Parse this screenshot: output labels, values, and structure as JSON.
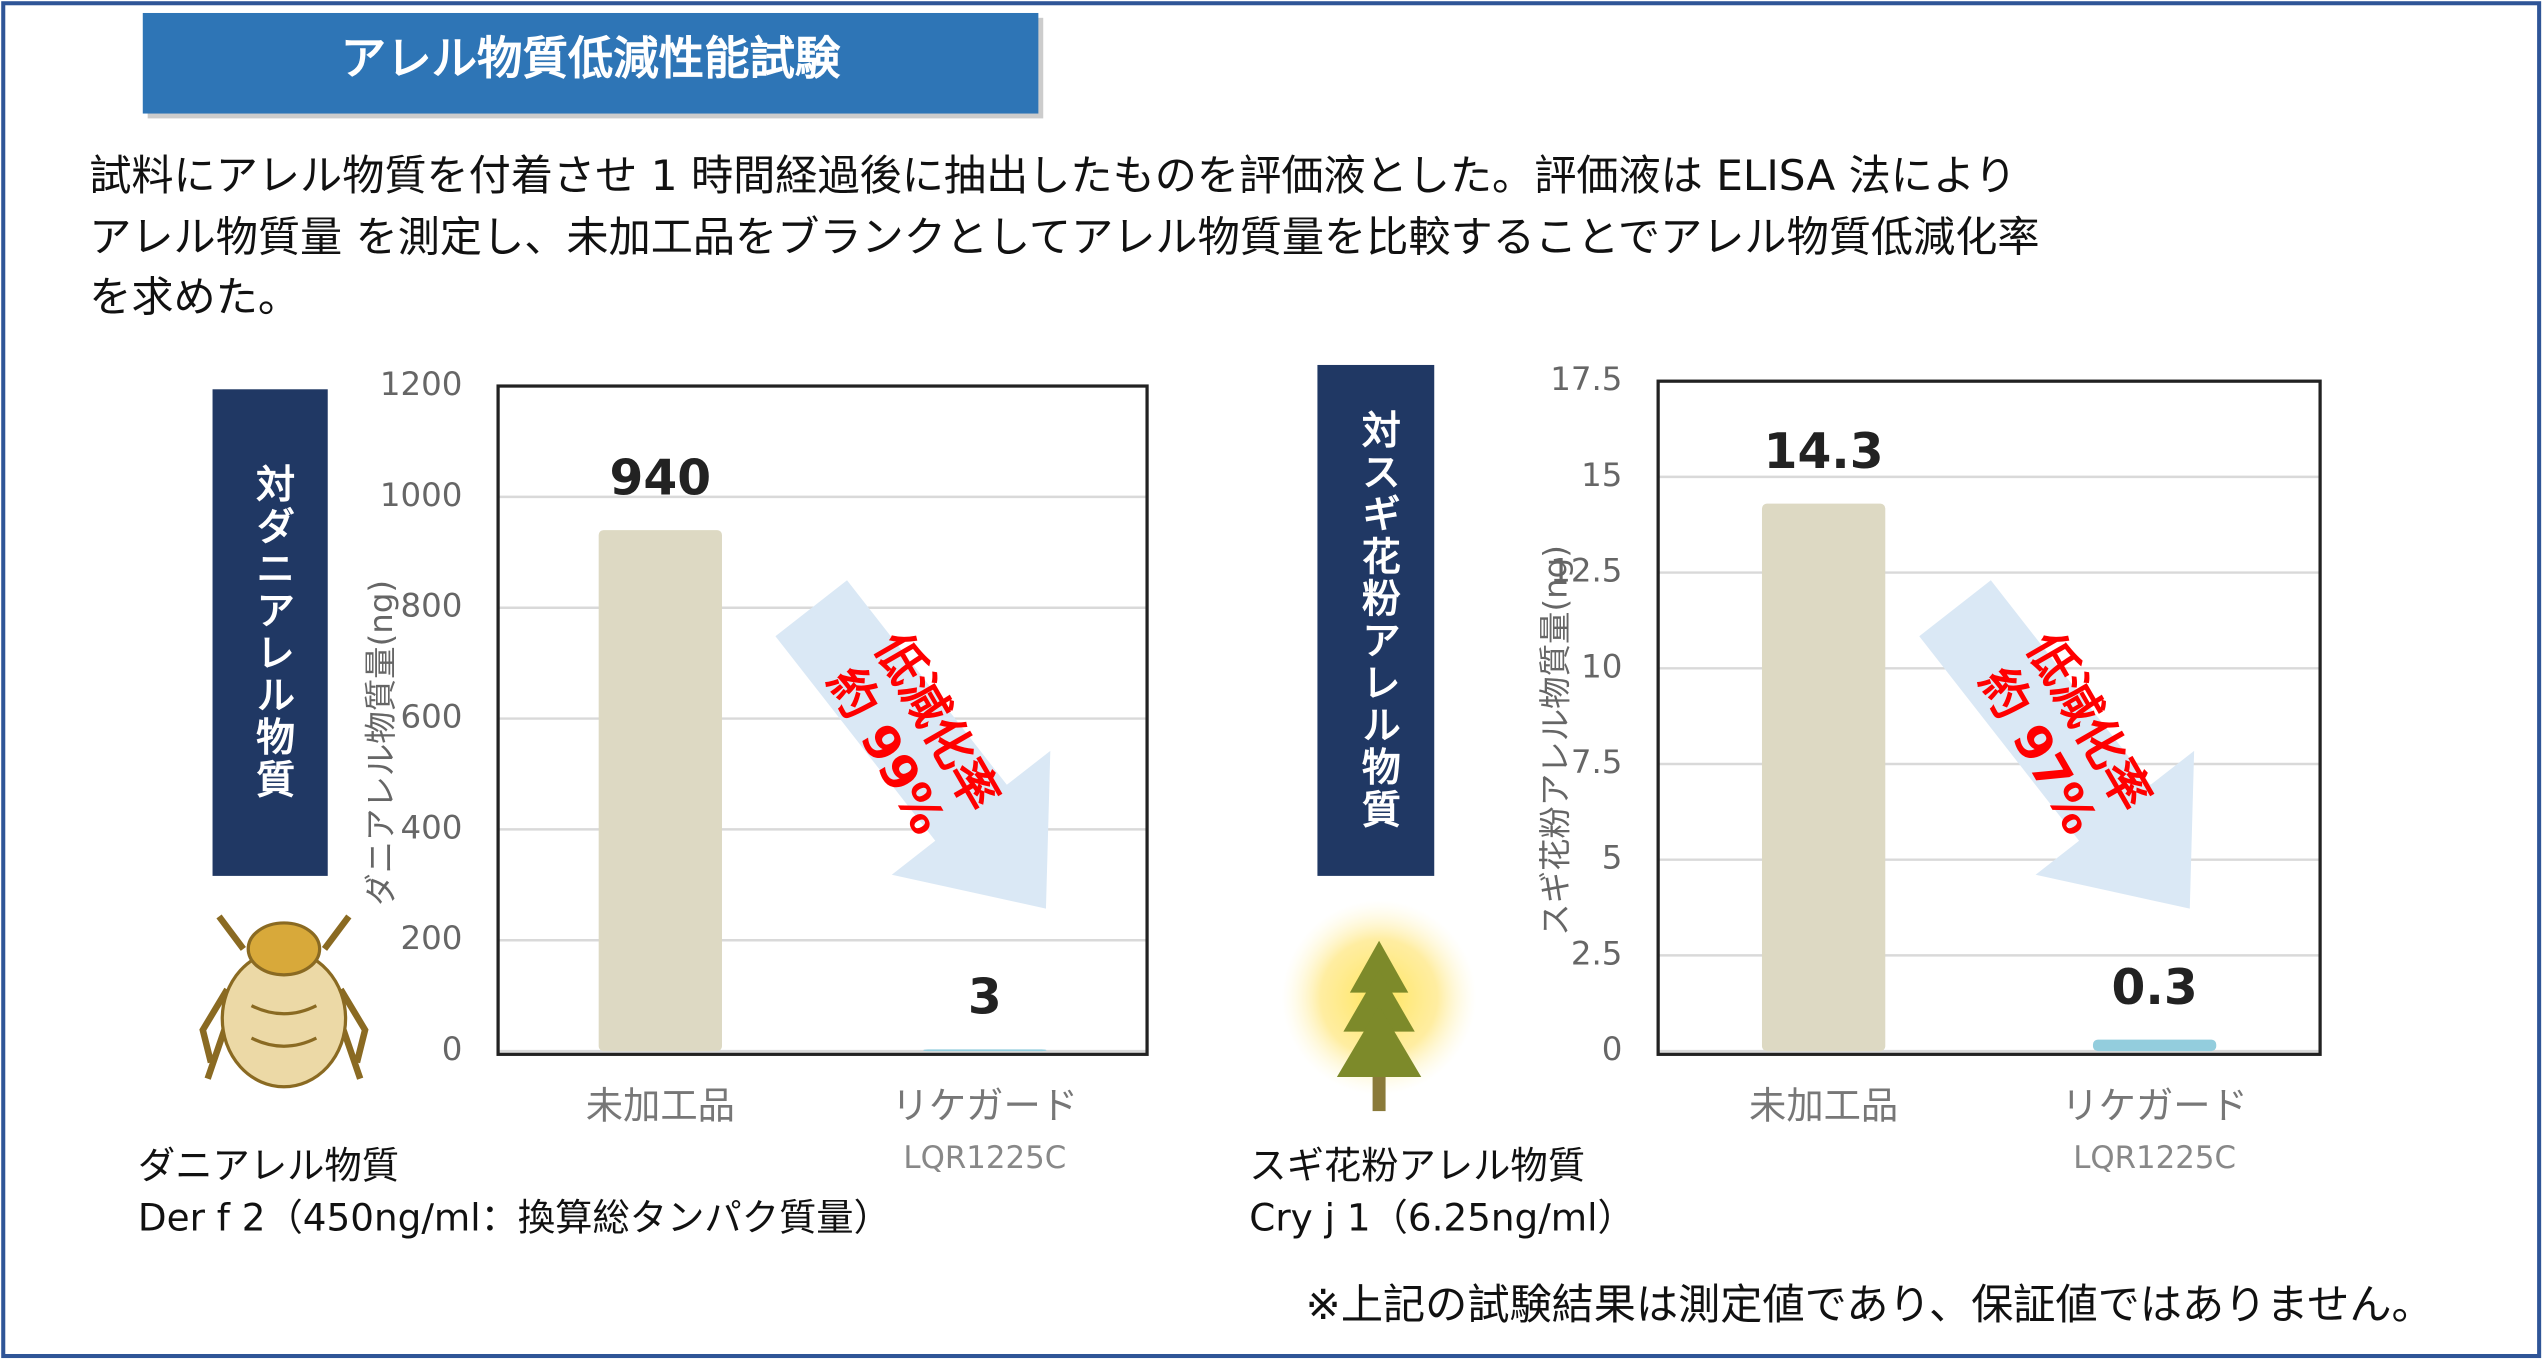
{
  "title": "アレル物質低減性能試験",
  "description": [
    "試料にアレル物質を付着させ 1 時間経過後に抽出したものを評価液とした。評価液は ELISA 法により",
    "アレル物質量 を測定し、未加工品をブランクとしてアレル物質量を比較することでアレル物質低減化率",
    "を求めた。"
  ],
  "note": "※上記の試験結果は測定値であり、保証値ではありません。",
  "chart_data": [
    {
      "type": "bar",
      "side_label": "対ダニアレル物質",
      "y_label": "ダニアレル物質量(ng)",
      "categories": [
        "未加工品",
        "リケガード"
      ],
      "category_sublabels": [
        null,
        "LQR1225C"
      ],
      "values": [
        940,
        3
      ],
      "colors": [
        "#ddd9c3",
        "#93cddd"
      ],
      "ylim": [
        0,
        1200
      ],
      "yticks": [
        0,
        200,
        400,
        600,
        800,
        1000,
        1200
      ],
      "grid": true,
      "annotation": [
        "低減化率",
        "約 99%"
      ],
      "caption": [
        "ダニアレル物質",
        "Der f 2（450ng/ml：換算総タンパク質量）"
      ]
    },
    {
      "type": "bar",
      "side_label": "対スギ花粉アレル物質",
      "y_label": "スギ花粉アレル物質量(ng)",
      "categories": [
        "未加工品",
        "リケガード"
      ],
      "category_sublabels": [
        null,
        "LQR1225C"
      ],
      "values": [
        14.3,
        0.3
      ],
      "colors": [
        "#ddd9c3",
        "#93cddd"
      ],
      "ylim": [
        0,
        17.5
      ],
      "yticks": [
        0,
        2.5,
        5,
        7.5,
        10,
        12.5,
        15,
        17.5
      ],
      "grid": true,
      "annotation": [
        "低減化率",
        "約 97%"
      ],
      "caption": [
        "スギ花粉アレル物質",
        "Cry j 1（6.25ng/ml）"
      ]
    }
  ]
}
